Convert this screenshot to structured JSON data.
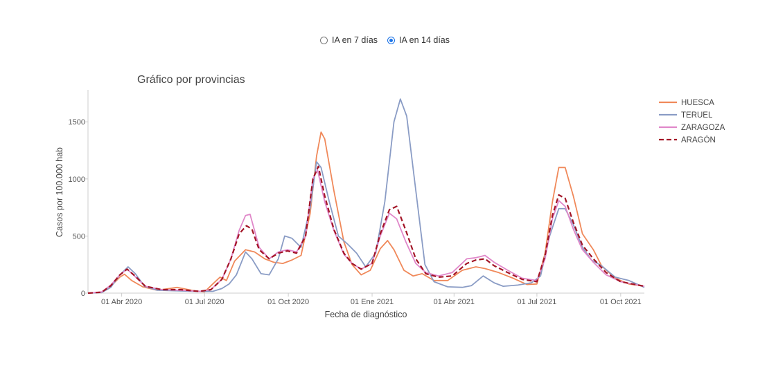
{
  "toggle": {
    "options": [
      {
        "label": "IA en 7 días",
        "checked": false
      },
      {
        "label": "IA en 14 días",
        "checked": true
      }
    ]
  },
  "chart_data": {
    "type": "line",
    "title": "Gráfico por provincias",
    "xlabel": "Fecha de diagnóstico",
    "ylabel": "Casos por 100.000 hab",
    "ylim": [
      0,
      1780
    ],
    "xlim": [
      "2020-02-24",
      "2021-10-27"
    ],
    "y_ticks": [
      0,
      500,
      1000,
      1500
    ],
    "x_ticks": [
      {
        "date": "2020-04-01",
        "label": "01 Abr 2020"
      },
      {
        "date": "2020-07-01",
        "label": "01 Jul 2020"
      },
      {
        "date": "2020-10-01",
        "label": "01 Oct 2020"
      },
      {
        "date": "2021-01-01",
        "label": "01 Ene 2021"
      },
      {
        "date": "2021-04-01",
        "label": "01 Abr 2021"
      },
      {
        "date": "2021-07-01",
        "label": "01 Jul 2021"
      },
      {
        "date": "2021-10-01",
        "label": "01 Oct 2021"
      }
    ],
    "grid": false,
    "legend_position": "right",
    "series": [
      {
        "name": "HUESCA",
        "color": "#f0895a",
        "dash": false,
        "points": [
          [
            "2020-02-24",
            0
          ],
          [
            "2020-03-10",
            5
          ],
          [
            "2020-03-20",
            60
          ],
          [
            "2020-03-30",
            140
          ],
          [
            "2020-04-04",
            165
          ],
          [
            "2020-04-12",
            110
          ],
          [
            "2020-04-24",
            55
          ],
          [
            "2020-05-10",
            25
          ],
          [
            "2020-06-01",
            50
          ],
          [
            "2020-06-20",
            20
          ],
          [
            "2020-07-01",
            10
          ],
          [
            "2020-07-10",
            80
          ],
          [
            "2020-07-18",
            140
          ],
          [
            "2020-07-25",
            110
          ],
          [
            "2020-08-03",
            280
          ],
          [
            "2020-08-15",
            380
          ],
          [
            "2020-08-25",
            360
          ],
          [
            "2020-09-05",
            300
          ],
          [
            "2020-09-15",
            270
          ],
          [
            "2020-09-25",
            260
          ],
          [
            "2020-10-05",
            290
          ],
          [
            "2020-10-15",
            330
          ],
          [
            "2020-10-25",
            700
          ],
          [
            "2020-11-01",
            1200
          ],
          [
            "2020-11-06",
            1410
          ],
          [
            "2020-11-10",
            1350
          ],
          [
            "2020-11-20",
            900
          ],
          [
            "2020-12-01",
            450
          ],
          [
            "2020-12-10",
            250
          ],
          [
            "2020-12-20",
            160
          ],
          [
            "2020-12-30",
            200
          ],
          [
            "2021-01-10",
            390
          ],
          [
            "2021-01-18",
            460
          ],
          [
            "2021-01-25",
            380
          ],
          [
            "2021-02-05",
            200
          ],
          [
            "2021-02-15",
            150
          ],
          [
            "2021-02-25",
            170
          ],
          [
            "2021-03-10",
            110
          ],
          [
            "2021-03-25",
            110
          ],
          [
            "2021-04-10",
            200
          ],
          [
            "2021-04-25",
            230
          ],
          [
            "2021-05-05",
            215
          ],
          [
            "2021-05-20",
            180
          ],
          [
            "2021-06-05",
            130
          ],
          [
            "2021-06-20",
            75
          ],
          [
            "2021-07-01",
            80
          ],
          [
            "2021-07-10",
            350
          ],
          [
            "2021-07-18",
            800
          ],
          [
            "2021-07-25",
            1100
          ],
          [
            "2021-08-01",
            1100
          ],
          [
            "2021-08-10",
            850
          ],
          [
            "2021-08-20",
            520
          ],
          [
            "2021-09-01",
            380
          ],
          [
            "2021-09-10",
            240
          ],
          [
            "2021-09-25",
            130
          ],
          [
            "2021-10-10",
            80
          ],
          [
            "2021-10-27",
            60
          ]
        ]
      },
      {
        "name": "TERUEL",
        "color": "#8a9cc5",
        "dash": false,
        "points": [
          [
            "2020-02-24",
            0
          ],
          [
            "2020-03-10",
            5
          ],
          [
            "2020-03-20",
            50
          ],
          [
            "2020-03-30",
            160
          ],
          [
            "2020-04-08",
            230
          ],
          [
            "2020-04-16",
            170
          ],
          [
            "2020-04-26",
            60
          ],
          [
            "2020-05-10",
            25
          ],
          [
            "2020-06-01",
            20
          ],
          [
            "2020-06-20",
            15
          ],
          [
            "2020-07-10",
            15
          ],
          [
            "2020-07-20",
            40
          ],
          [
            "2020-07-28",
            80
          ],
          [
            "2020-08-05",
            160
          ],
          [
            "2020-08-15",
            360
          ],
          [
            "2020-08-22",
            300
          ],
          [
            "2020-09-01",
            170
          ],
          [
            "2020-09-10",
            160
          ],
          [
            "2020-09-20",
            300
          ],
          [
            "2020-09-27",
            500
          ],
          [
            "2020-10-05",
            480
          ],
          [
            "2020-10-15",
            400
          ],
          [
            "2020-10-25",
            750
          ],
          [
            "2020-11-01",
            1150
          ],
          [
            "2020-11-06",
            1100
          ],
          [
            "2020-11-15",
            800
          ],
          [
            "2020-11-25",
            500
          ],
          [
            "2020-12-05",
            430
          ],
          [
            "2020-12-15",
            350
          ],
          [
            "2020-12-25",
            230
          ],
          [
            "2021-01-05",
            350
          ],
          [
            "2021-01-15",
            800
          ],
          [
            "2021-01-25",
            1500
          ],
          [
            "2021-02-01",
            1700
          ],
          [
            "2021-02-08",
            1550
          ],
          [
            "2021-02-18",
            900
          ],
          [
            "2021-02-28",
            250
          ],
          [
            "2021-03-10",
            100
          ],
          [
            "2021-03-25",
            55
          ],
          [
            "2021-04-10",
            50
          ],
          [
            "2021-04-20",
            65
          ],
          [
            "2021-05-03",
            150
          ],
          [
            "2021-05-15",
            90
          ],
          [
            "2021-05-25",
            60
          ],
          [
            "2021-06-10",
            70
          ],
          [
            "2021-06-25",
            90
          ],
          [
            "2021-07-05",
            150
          ],
          [
            "2021-07-15",
            500
          ],
          [
            "2021-07-25",
            740
          ],
          [
            "2021-08-01",
            740
          ],
          [
            "2021-08-10",
            600
          ],
          [
            "2021-08-20",
            400
          ],
          [
            "2021-08-30",
            290
          ],
          [
            "2021-09-10",
            240
          ],
          [
            "2021-09-25",
            140
          ],
          [
            "2021-10-10",
            110
          ],
          [
            "2021-10-27",
            50
          ]
        ]
      },
      {
        "name": "ZARAGOZA",
        "color": "#e087c9",
        "dash": false,
        "points": [
          [
            "2020-02-24",
            0
          ],
          [
            "2020-03-10",
            10
          ],
          [
            "2020-03-20",
            70
          ],
          [
            "2020-03-30",
            160
          ],
          [
            "2020-04-07",
            210
          ],
          [
            "2020-04-15",
            150
          ],
          [
            "2020-04-27",
            60
          ],
          [
            "2020-05-15",
            30
          ],
          [
            "2020-06-05",
            25
          ],
          [
            "2020-06-25",
            15
          ],
          [
            "2020-07-08",
            30
          ],
          [
            "2020-07-20",
            120
          ],
          [
            "2020-07-30",
            300
          ],
          [
            "2020-08-08",
            550
          ],
          [
            "2020-08-15",
            680
          ],
          [
            "2020-08-20",
            690
          ],
          [
            "2020-08-30",
            400
          ],
          [
            "2020-09-10",
            300
          ],
          [
            "2020-09-20",
            360
          ],
          [
            "2020-09-30",
            380
          ],
          [
            "2020-10-10",
            360
          ],
          [
            "2020-10-20",
            500
          ],
          [
            "2020-10-28",
            1000
          ],
          [
            "2020-11-02",
            1080
          ],
          [
            "2020-11-10",
            800
          ],
          [
            "2020-11-20",
            550
          ],
          [
            "2020-12-01",
            340
          ],
          [
            "2020-12-10",
            260
          ],
          [
            "2020-12-20",
            210
          ],
          [
            "2021-01-01",
            260
          ],
          [
            "2021-01-10",
            500
          ],
          [
            "2021-01-20",
            700
          ],
          [
            "2021-01-28",
            650
          ],
          [
            "2021-02-07",
            450
          ],
          [
            "2021-02-18",
            260
          ],
          [
            "2021-03-01",
            180
          ],
          [
            "2021-03-15",
            150
          ],
          [
            "2021-03-30",
            180
          ],
          [
            "2021-04-15",
            300
          ],
          [
            "2021-04-25",
            310
          ],
          [
            "2021-05-05",
            330
          ],
          [
            "2021-05-15",
            270
          ],
          [
            "2021-05-30",
            200
          ],
          [
            "2021-06-15",
            130
          ],
          [
            "2021-07-01",
            110
          ],
          [
            "2021-07-10",
            300
          ],
          [
            "2021-07-18",
            650
          ],
          [
            "2021-07-25",
            810
          ],
          [
            "2021-08-01",
            760
          ],
          [
            "2021-08-10",
            560
          ],
          [
            "2021-08-20",
            380
          ],
          [
            "2021-09-01",
            270
          ],
          [
            "2021-09-15",
            160
          ],
          [
            "2021-10-01",
            100
          ],
          [
            "2021-10-27",
            60
          ]
        ]
      },
      {
        "name": "ARAGÓN",
        "color": "#a31527",
        "dash": true,
        "points": [
          [
            "2020-02-24",
            0
          ],
          [
            "2020-03-10",
            8
          ],
          [
            "2020-03-20",
            65
          ],
          [
            "2020-03-30",
            160
          ],
          [
            "2020-04-07",
            210
          ],
          [
            "2020-04-15",
            155
          ],
          [
            "2020-04-27",
            60
          ],
          [
            "2020-05-15",
            30
          ],
          [
            "2020-06-05",
            30
          ],
          [
            "2020-06-25",
            15
          ],
          [
            "2020-07-08",
            30
          ],
          [
            "2020-07-20",
            120
          ],
          [
            "2020-07-30",
            300
          ],
          [
            "2020-08-08",
            520
          ],
          [
            "2020-08-16",
            590
          ],
          [
            "2020-08-22",
            560
          ],
          [
            "2020-08-30",
            380
          ],
          [
            "2020-09-10",
            300
          ],
          [
            "2020-09-20",
            350
          ],
          [
            "2020-09-30",
            370
          ],
          [
            "2020-10-10",
            350
          ],
          [
            "2020-10-20",
            500
          ],
          [
            "2020-10-28",
            1000
          ],
          [
            "2020-11-03",
            1110
          ],
          [
            "2020-11-10",
            850
          ],
          [
            "2020-11-20",
            560
          ],
          [
            "2020-12-01",
            350
          ],
          [
            "2020-12-10",
            260
          ],
          [
            "2020-12-20",
            210
          ],
          [
            "2021-01-01",
            260
          ],
          [
            "2021-01-10",
            520
          ],
          [
            "2021-01-20",
            730
          ],
          [
            "2021-01-28",
            760
          ],
          [
            "2021-02-07",
            550
          ],
          [
            "2021-02-18",
            300
          ],
          [
            "2021-03-01",
            170
          ],
          [
            "2021-03-15",
            140
          ],
          [
            "2021-03-30",
            150
          ],
          [
            "2021-04-15",
            260
          ],
          [
            "2021-04-25",
            290
          ],
          [
            "2021-05-05",
            300
          ],
          [
            "2021-05-15",
            240
          ],
          [
            "2021-05-30",
            180
          ],
          [
            "2021-06-15",
            120
          ],
          [
            "2021-07-01",
            100
          ],
          [
            "2021-07-10",
            330
          ],
          [
            "2021-07-18",
            680
          ],
          [
            "2021-07-25",
            860
          ],
          [
            "2021-08-01",
            830
          ],
          [
            "2021-08-10",
            620
          ],
          [
            "2021-08-20",
            420
          ],
          [
            "2021-09-01",
            300
          ],
          [
            "2021-09-15",
            180
          ],
          [
            "2021-10-01",
            100
          ],
          [
            "2021-10-27",
            60
          ]
        ]
      }
    ]
  }
}
